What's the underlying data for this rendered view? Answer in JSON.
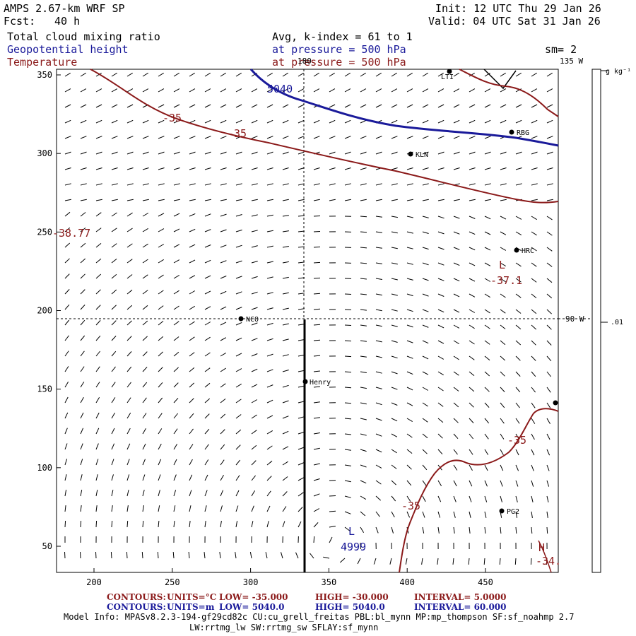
{
  "header": {
    "title": "AMPS 2.67-km WRF SP",
    "fcst_label": "Fcst:",
    "fcst_value": "40 h",
    "init": "Init: 12 UTC Thu 29 Jan 26",
    "valid": "Valid: 04 UTC Sat 31 Jan 26",
    "field1": "Total cloud mixing ratio",
    "field2": "Geopotential height",
    "field3": "Temperature",
    "avg": "Avg, k-index =  61 to   1",
    "pressure1": "at pressure =  500 hPa",
    "pressure2": "at pressure =  500 hPa",
    "sm": "sm= 2"
  },
  "axes": {
    "x_ticks": [
      "200",
      "250",
      "300",
      "350",
      "400",
      "450"
    ],
    "y_ticks": [
      "350",
      "300",
      "250",
      "200",
      "150",
      "100",
      "50"
    ],
    "lon_180": "180",
    "lon_135w": "135 W",
    "lon_90w": "90 W"
  },
  "colorbar": {
    "units": "g kg⁻¹",
    "value": ".01"
  },
  "stations": [
    {
      "name": "LTI"
    },
    {
      "name": "RBG"
    },
    {
      "name": "KLN"
    },
    {
      "name": "HRC"
    },
    {
      "name": "NCO"
    },
    {
      "name": "Henry"
    },
    {
      "name": "PG2"
    }
  ],
  "labels": {
    "h5040": "5040",
    "h4999": "4999",
    "low_H": "L",
    "t35a": "-35",
    "t35b": "-35",
    "t3877": "-38.77",
    "tL": "L",
    "t371": "-37.1",
    "t35c": "-35",
    "t35d": "-35",
    "tH": "H",
    "t34": "-34."
  },
  "footer": {
    "line1_contours": "CONTOURS:",
    "line1_units": "UNITS=°C",
    "line1_low": "LOW=  -35.000",
    "line1_high": "HIGH=  -30.000",
    "line1_interval": "INTERVAL=    5.0000",
    "line2_contours": "CONTOURS:",
    "line2_units": "UNITS=m",
    "line2_low": "LOW=   5040.0",
    "line2_high": "HIGH=  5040.0",
    "line2_interval": "INTERVAL=    60.000",
    "model_info": "Model Info: MPASv8.2.3-194-gf29cd82c CU:cu_grell_freitas PBL:bl_mynn MP:mp_thompson SF:sf_noahmp 2.7",
    "model_info2": "LW:rrtmg_lw SW:rrtmg_sw SFLAY:sf_mynn"
  },
  "colors": {
    "height": "#1a1a9a",
    "temp": "#8b1a1a"
  }
}
